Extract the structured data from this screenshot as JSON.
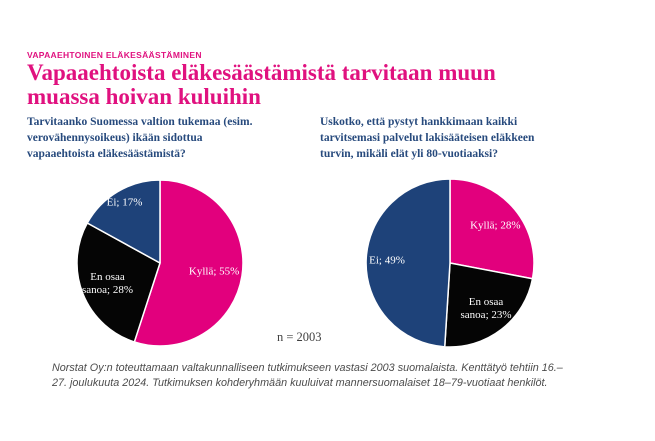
{
  "page": {
    "background": "#FFFFFF",
    "accent_pink": "#E0117F",
    "accent_navy": "#274A7D"
  },
  "header": {
    "kicker": "VAPAAEHTOINEN ELÄKESÄÄSTÄMINEN",
    "title_lines": [
      "Vapaaehtoista eläkesäästämistä tarvitaan muun",
      "muassa hoivan kuluihin"
    ]
  },
  "questions": {
    "left_lines": [
      "Tarvitaanko Suomessa valtion tukemaa (esim.",
      "verovähennysoikeus) ikään sidottua",
      "vapaaehtoista eläkesäästämistä?"
    ],
    "right_lines": [
      "Uskotko, että pystyt hankkimaan kaikki",
      "tarvitsemasi palvelut lakisääteisen eläkkeen",
      "turvin, mikäli elät yli 80-vuotiaaksi?"
    ]
  },
  "sample_note": "n = 2003",
  "footnote_lines": [
    "Norstat Oy:n toteuttamaan valtakunnalliseen tutkimukseen vastasi 2003 suomalaista. Kenttätyö tehtiin 16.–",
    "27. joulukuuta 2024. Tutkimuksen  kohderyhmään kuuluivat mannersuomalaiset 18–79-vuotiaat henkilöt."
  ],
  "chart_data": [
    {
      "type": "pie",
      "title": "Tarvitaanko Suomessa valtion tukemaa (esim. verovähennysoikeus) ikään sidottua vapaaehtoista eläkesäästämistä?",
      "labels": [
        "Kyllä",
        "En osaa sanoa",
        "Ei"
      ],
      "values": [
        55,
        28,
        17
      ],
      "colors": [
        "#E2007D",
        "#050505",
        "#1E4279"
      ],
      "label_text_color": "#FFFFFF",
      "slice_label_lines": [
        [
          "Kyllä; 55%"
        ],
        [
          "En osaa",
          "sanoa; 28%"
        ],
        [
          "Ei; 17%"
        ]
      ],
      "label_r": [
        0.66,
        0.68,
        0.84
      ],
      "start_angle_deg": 0,
      "direction": "clockwise",
      "legend": "none"
    },
    {
      "type": "pie",
      "title": "Uskotko, että pystyt hankkimaan kaikki tarvitsemasi palvelut lakisääteisen eläkkeen turvin, mikäli elät yli 80-vuotiaaksi?",
      "labels": [
        "Kyllä",
        "En osaa sanoa",
        "Ei"
      ],
      "values": [
        28,
        23,
        49
      ],
      "colors": [
        "#E2007D",
        "#050505",
        "#1E4279"
      ],
      "label_text_color": "#FFFFFF",
      "slice_label_lines": [
        [
          "Kyllä; 28%"
        ],
        [
          "En osaa",
          "sanoa; 23%"
        ],
        [
          "Ei; 49%"
        ]
      ],
      "label_r": [
        0.7,
        0.7,
        0.75
      ],
      "start_angle_deg": 0,
      "direction": "clockwise",
      "legend": "none"
    }
  ]
}
